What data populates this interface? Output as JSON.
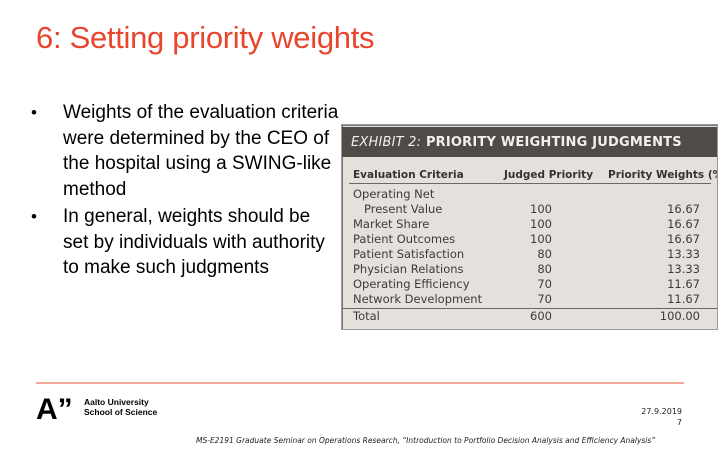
{
  "slide": {
    "title": "6: Setting priority weights",
    "bullets": [
      "Weights of the evaluation criteria were determined by the CEO of the hospital using a SWING-like method",
      "In general, weights should be set by individuals with authority to make such judgments"
    ],
    "bullet_glyph": "•",
    "accent_color": "#e8452c"
  },
  "exhibit": {
    "label": "EXHIBIT 2:",
    "title": "PRIORITY WEIGHTING JUDGMENTS",
    "columns": [
      "Evaluation Criteria",
      "Judged Priority",
      "Priority Weights (%)"
    ],
    "rows": [
      {
        "criterion": "Operating Net",
        "priority": "",
        "weight": ""
      },
      {
        "criterion": "  Present Value",
        "priority": "100",
        "weight": "16.67"
      },
      {
        "criterion": "Market Share",
        "priority": "100",
        "weight": "16.67"
      },
      {
        "criterion": "Patient Outcomes",
        "priority": "100",
        "weight": "16.67"
      },
      {
        "criterion": "Patient Satisfaction",
        "priority": "80",
        "weight": "13.33"
      },
      {
        "criterion": "Physician Relations",
        "priority": "80",
        "weight": "13.33"
      },
      {
        "criterion": "Operating Efficiency",
        "priority": "70",
        "weight": "11.67"
      },
      {
        "criterion": "Network Development",
        "priority": "70",
        "weight": "11.67"
      }
    ],
    "total": {
      "criterion": "Total",
      "priority": "600",
      "weight": "100.00"
    }
  },
  "footer": {
    "logo_mark": "A”",
    "university": "Aalto University",
    "school": "School of Science",
    "date": "27.9.2019",
    "page": "7",
    "course": "MS-E2191 Graduate Seminar on Operations Research, “Introduction to Portfolio Decision Analysis and Efficiency Analysis”"
  }
}
